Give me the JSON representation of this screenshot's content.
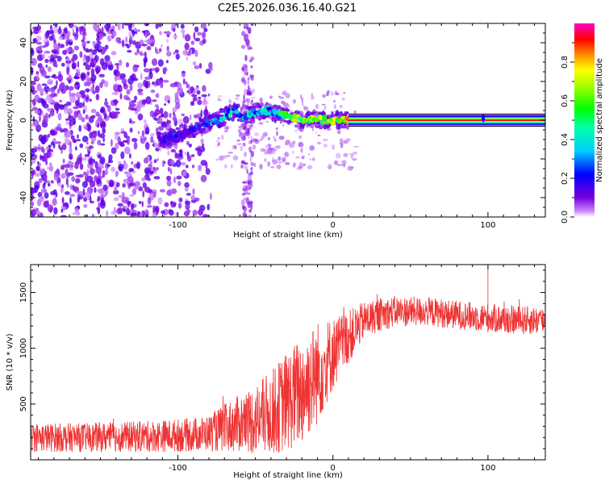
{
  "title": "C2E5.2026.036.16.40.G21",
  "chart_data": [
    {
      "type": "heatmap",
      "name": "spectrogram",
      "xlabel": "Height of straight line (km)",
      "ylabel": "Frequency (Hz)",
      "xlim": [
        -195,
        137
      ],
      "ylim": [
        -50,
        50
      ],
      "xticks": [
        -100,
        0,
        100
      ],
      "yticks": [
        -40,
        -20,
        0,
        20,
        40
      ],
      "colorbar": {
        "label": "Normalized spectral amplitude",
        "range": [
          0,
          1
        ],
        "ticks": [
          0.0,
          0.2,
          0.4,
          0.6,
          0.8
        ],
        "colormap": "rainbow (purple→blue→cyan→green→yellow→red→magenta)"
      },
      "ridge": {
        "description": "dominant frequency trace (normalized amplitude ~0.9 at 0 Hz beyond 10 km)",
        "x": [
          -110,
          -95,
          -85,
          -75,
          -68,
          -62,
          -58,
          -50,
          -42,
          -35,
          -28,
          -20,
          -12,
          -5,
          0,
          5,
          10,
          20,
          40,
          60,
          80,
          100,
          120,
          137
        ],
        "frequency": [
          -10,
          -7,
          -3,
          0,
          3,
          5,
          1,
          4,
          5,
          3,
          2,
          0,
          1,
          0,
          0,
          0,
          0,
          0,
          0,
          0,
          0,
          0,
          0,
          0
        ],
        "amplitude": [
          0.25,
          0.3,
          0.35,
          0.4,
          0.45,
          0.55,
          0.5,
          0.5,
          0.55,
          0.6,
          0.7,
          0.75,
          0.8,
          0.85,
          0.85,
          0.85,
          0.9,
          0.92,
          0.92,
          0.92,
          0.92,
          0.92,
          0.92,
          0.92
        ]
      },
      "noise_region": {
        "description": "scattered low-amplitude purple noise",
        "x_range": [
          -195,
          -78
        ],
        "amplitude_range": [
          0.0,
          0.15
        ]
      }
    },
    {
      "type": "line",
      "name": "snr",
      "xlabel": "Height of straight line (km)",
      "ylabel": "SNR (10 * v/v)",
      "xlim": [
        -195,
        137
      ],
      "ylim": [
        0,
        1750
      ],
      "xticks": [
        -100,
        0,
        100
      ],
      "yticks": [
        500,
        1000,
        1500
      ],
      "series_color": "#ee3333",
      "envelope": {
        "x": [
          -195,
          -160,
          -120,
          -95,
          -80,
          -70,
          -60,
          -50,
          -40,
          -30,
          -20,
          -10,
          0,
          10,
          20,
          30,
          40,
          60,
          80,
          100,
          120,
          137
        ],
        "mean": [
          200,
          200,
          210,
          220,
          240,
          280,
          330,
          360,
          420,
          520,
          620,
          780,
          950,
          1100,
          1250,
          1300,
          1330,
          1330,
          1300,
          1270,
          1250,
          1250
        ],
        "amplitude": [
          130,
          130,
          140,
          150,
          160,
          220,
          260,
          320,
          380,
          450,
          500,
          470,
          330,
          240,
          170,
          150,
          140,
          130,
          130,
          130,
          130,
          130
        ]
      },
      "peak": {
        "x": 100,
        "y": 1750
      }
    }
  ]
}
